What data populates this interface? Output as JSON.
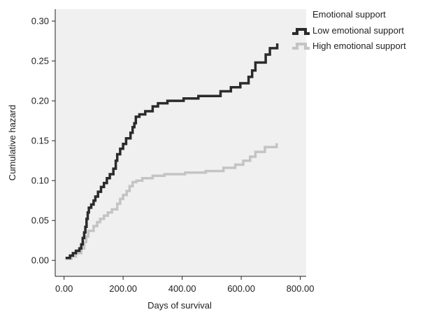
{
  "chart_data": {
    "type": "line",
    "step": true,
    "xlabel": "Days of survival",
    "ylabel": "Cumulative hazard",
    "xlim": [
      -30,
      820
    ],
    "ylim": [
      -0.02,
      0.315
    ],
    "x_ticks": [
      0,
      200,
      400,
      600,
      800
    ],
    "x_tick_labels": [
      "0.00",
      "200.00",
      "400.00",
      "600.00",
      "800.00"
    ],
    "y_ticks": [
      0,
      0.05,
      0.1,
      0.15,
      0.2,
      0.25,
      0.3
    ],
    "y_tick_labels": [
      "0.00",
      "0.05",
      "0.10",
      "0.15",
      "0.20",
      "0.25",
      "0.30"
    ],
    "grid": false,
    "plot_background": "#f0f0f0",
    "legend": {
      "title": "Emotional support",
      "position": "top-right"
    },
    "series": [
      {
        "name": "Low emotional support",
        "color": "#2b2b2b",
        "points": [
          [
            5,
            0.003
          ],
          [
            20,
            0.006
          ],
          [
            30,
            0.009
          ],
          [
            40,
            0.012
          ],
          [
            52,
            0.015
          ],
          [
            58,
            0.02
          ],
          [
            63,
            0.028
          ],
          [
            68,
            0.035
          ],
          [
            72,
            0.042
          ],
          [
            76,
            0.052
          ],
          [
            80,
            0.06
          ],
          [
            84,
            0.066
          ],
          [
            92,
            0.07
          ],
          [
            100,
            0.075
          ],
          [
            106,
            0.08
          ],
          [
            115,
            0.086
          ],
          [
            125,
            0.092
          ],
          [
            135,
            0.097
          ],
          [
            145,
            0.103
          ],
          [
            155,
            0.108
          ],
          [
            167,
            0.115
          ],
          [
            175,
            0.125
          ],
          [
            180,
            0.133
          ],
          [
            190,
            0.14
          ],
          [
            200,
            0.146
          ],
          [
            210,
            0.153
          ],
          [
            225,
            0.16
          ],
          [
            232,
            0.167
          ],
          [
            238,
            0.172
          ],
          [
            243,
            0.18
          ],
          [
            255,
            0.183
          ],
          [
            275,
            0.187
          ],
          [
            300,
            0.193
          ],
          [
            318,
            0.197
          ],
          [
            350,
            0.2
          ],
          [
            405,
            0.203
          ],
          [
            455,
            0.206
          ],
          [
            530,
            0.212
          ],
          [
            565,
            0.217
          ],
          [
            597,
            0.222
          ],
          [
            625,
            0.23
          ],
          [
            637,
            0.238
          ],
          [
            648,
            0.248
          ],
          [
            683,
            0.258
          ],
          [
            697,
            0.266
          ],
          [
            722,
            0.272
          ]
        ]
      },
      {
        "name": "High emotional support",
        "color": "#c4c4c4",
        "points": [
          [
            5,
            0.002
          ],
          [
            25,
            0.005
          ],
          [
            40,
            0.009
          ],
          [
            58,
            0.015
          ],
          [
            68,
            0.023
          ],
          [
            75,
            0.03
          ],
          [
            82,
            0.037
          ],
          [
            100,
            0.043
          ],
          [
            112,
            0.048
          ],
          [
            122,
            0.052
          ],
          [
            135,
            0.056
          ],
          [
            148,
            0.06
          ],
          [
            162,
            0.064
          ],
          [
            180,
            0.071
          ],
          [
            190,
            0.077
          ],
          [
            200,
            0.082
          ],
          [
            212,
            0.087
          ],
          [
            222,
            0.093
          ],
          [
            232,
            0.098
          ],
          [
            245,
            0.1
          ],
          [
            265,
            0.103
          ],
          [
            300,
            0.106
          ],
          [
            340,
            0.108
          ],
          [
            410,
            0.11
          ],
          [
            480,
            0.112
          ],
          [
            540,
            0.116
          ],
          [
            580,
            0.12
          ],
          [
            607,
            0.125
          ],
          [
            630,
            0.13
          ],
          [
            648,
            0.136
          ],
          [
            680,
            0.142
          ],
          [
            720,
            0.147
          ]
        ]
      }
    ]
  }
}
